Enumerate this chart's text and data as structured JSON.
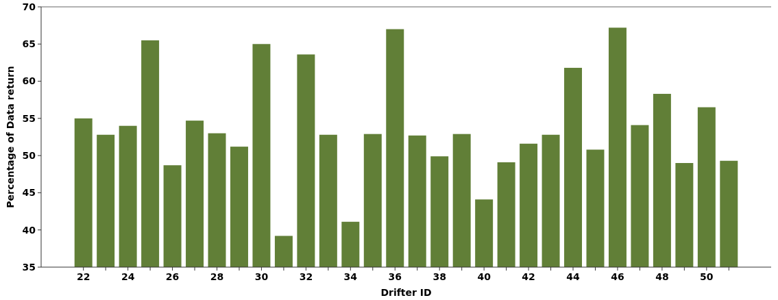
{
  "chart_data": {
    "type": "bar",
    "xlabel": "Drifter ID",
    "ylabel": "Percentage of Data return",
    "color": "#617f37",
    "x": [
      22,
      23,
      24,
      25,
      26,
      27,
      28,
      29,
      30,
      31,
      32,
      33,
      34,
      35,
      36,
      37,
      38,
      39,
      40,
      41,
      42,
      43,
      44,
      45,
      46,
      47,
      48,
      49,
      50,
      51
    ],
    "values": [
      55.0,
      52.8,
      54.0,
      65.5,
      48.7,
      54.7,
      53.0,
      51.2,
      65.0,
      39.2,
      63.6,
      52.8,
      41.1,
      52.9,
      67.0,
      52.7,
      49.9,
      52.9,
      44.1,
      49.1,
      51.6,
      52.8,
      61.8,
      50.8,
      67.2,
      54.1,
      58.3,
      49.0,
      56.5,
      49.3
    ],
    "xlim": [
      20.1,
      52.9
    ],
    "xticks": [
      22,
      {
        "value": 23,
        "label": null
      },
      24,
      {
        "value": 25,
        "label": null
      },
      26,
      {
        "value": 27,
        "label": null
      },
      28,
      {
        "value": 29,
        "label": null
      },
      30,
      {
        "value": 31,
        "label": null
      },
      32,
      {
        "value": 33,
        "label": null
      },
      34,
      {
        "value": 35,
        "label": null
      },
      36,
      {
        "value": 37,
        "label": null
      },
      38,
      {
        "value": 39,
        "label": null
      },
      40,
      {
        "value": 41,
        "label": null
      },
      42,
      {
        "value": 43,
        "label": null
      },
      44,
      {
        "value": 45,
        "label": null
      },
      46,
      {
        "value": 47,
        "label": null
      },
      48,
      {
        "value": 49,
        "label": null
      },
      50,
      {
        "value": 51,
        "label": null
      }
    ],
    "ylim": [
      35,
      70
    ],
    "yticks": [
      35,
      40,
      45,
      50,
      55,
      60,
      65,
      70
    ]
  }
}
